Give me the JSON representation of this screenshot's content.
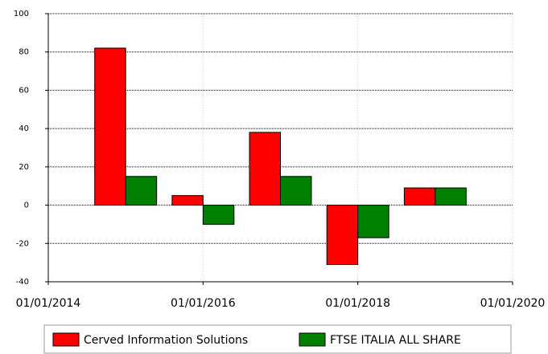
{
  "chart_data": {
    "type": "bar",
    "x": [
      "01/01/2015",
      "01/01/2016",
      "01/01/2017",
      "01/01/2018",
      "01/01/2019"
    ],
    "series": [
      {
        "name": "Cerved Information Solutions",
        "color": "#ff0000",
        "values": [
          82,
          5,
          38,
          -31,
          9
        ]
      },
      {
        "name": "FTSE ITALIA ALL SHARE",
        "color": "#008000",
        "values": [
          15,
          -10,
          15,
          -17,
          9
        ]
      }
    ],
    "xlim": [
      "01/01/2014",
      "01/01/2020"
    ],
    "xticks": [
      "01/01/2014",
      "01/01/2016",
      "01/01/2018",
      "01/01/2020"
    ],
    "ylim": [
      -40,
      100
    ],
    "yticks": [
      -40,
      -20,
      0,
      20,
      40,
      60,
      80,
      100
    ],
    "grid": true,
    "legend": "bottom"
  }
}
